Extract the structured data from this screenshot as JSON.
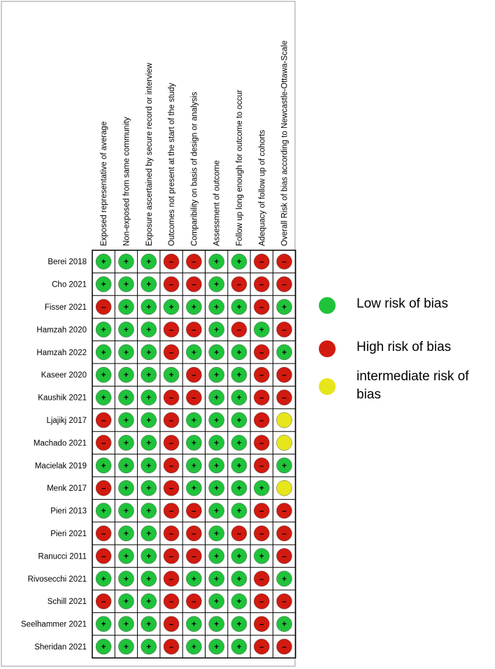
{
  "columns": [
    "Exposed representative of average",
    "Non-exposed from same community",
    "Exposure ascertained by secure record or interview",
    "Outcomes not present at the start of the study",
    "Comparibility on basis of design or analysis",
    "Assessment of outcome",
    "Follow up long enough for outcome to occur",
    "Adequacy of follow up of cohorts",
    "Overall Risk of bias according to Newcastle-Ottawa-Scale"
  ],
  "legend": [
    {
      "label": "Low risk of bias",
      "color": "#1fc33a",
      "symbol": "+"
    },
    {
      "label": "High risk of bias",
      "color": "#d11a10",
      "symbol": "–"
    },
    {
      "label": "intermediate risk of bias",
      "color": "#e6e61a"
    }
  ],
  "rows": [
    {
      "study": "Berei 2018",
      "cells": [
        0,
        0,
        0,
        1,
        1,
        0,
        0,
        1,
        1
      ]
    },
    {
      "study": "Cho 2021",
      "cells": [
        0,
        0,
        0,
        1,
        1,
        0,
        1,
        1,
        1
      ]
    },
    {
      "study": "Fisser 2021",
      "cells": [
        1,
        0,
        0,
        0,
        0,
        0,
        0,
        1,
        0
      ]
    },
    {
      "study": "Hamzah 2020",
      "cells": [
        0,
        0,
        0,
        1,
        1,
        0,
        1,
        0,
        1
      ]
    },
    {
      "study": "Hamzah 2022",
      "cells": [
        0,
        0,
        0,
        1,
        0,
        0,
        0,
        1,
        0
      ]
    },
    {
      "study": "Kaseer 2020",
      "cells": [
        0,
        0,
        0,
        0,
        1,
        0,
        0,
        1,
        1
      ]
    },
    {
      "study": "Kaushik 2021",
      "cells": [
        0,
        0,
        0,
        1,
        1,
        0,
        0,
        1,
        1
      ]
    },
    {
      "study": "Ljajikj 2017",
      "cells": [
        1,
        0,
        0,
        1,
        0,
        0,
        0,
        1,
        2
      ]
    },
    {
      "study": "Machado 2021",
      "cells": [
        1,
        0,
        0,
        1,
        0,
        0,
        0,
        1,
        2
      ]
    },
    {
      "study": "Macielak 2019",
      "cells": [
        0,
        0,
        0,
        1,
        0,
        0,
        0,
        1,
        0
      ]
    },
    {
      "study": "Menk 2017",
      "cells": [
        1,
        0,
        0,
        1,
        0,
        0,
        0,
        0,
        2
      ]
    },
    {
      "study": "Pieri 2013",
      "cells": [
        0,
        0,
        0,
        1,
        1,
        0,
        0,
        1,
        1
      ]
    },
    {
      "study": "Pieri 2021",
      "cells": [
        1,
        0,
        0,
        1,
        1,
        0,
        1,
        1,
        1
      ]
    },
    {
      "study": "Ranucci 2011",
      "cells": [
        1,
        0,
        0,
        1,
        1,
        0,
        0,
        0,
        1
      ]
    },
    {
      "study": "Rivosecchi 2021",
      "cells": [
        0,
        0,
        0,
        1,
        0,
        0,
        0,
        1,
        0
      ]
    },
    {
      "study": "Schill 2021",
      "cells": [
        1,
        0,
        0,
        1,
        1,
        0,
        0,
        1,
        1
      ]
    },
    {
      "study": "Seelhammer 2021",
      "cells": [
        0,
        0,
        0,
        1,
        0,
        0,
        0,
        1,
        0
      ]
    },
    {
      "study": "Sheridan 2021",
      "cells": [
        0,
        0,
        0,
        1,
        0,
        0,
        0,
        1,
        1
      ]
    }
  ]
}
